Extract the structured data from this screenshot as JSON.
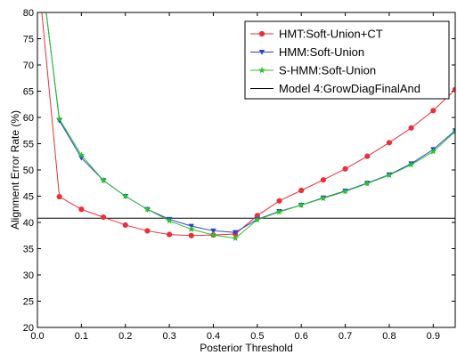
{
  "chart_data": {
    "type": "line",
    "xlabel": "Posterior Threshold",
    "ylabel": "Alignment Error Rate (%)",
    "xlim": [
      0.0,
      0.95
    ],
    "ylim": [
      20,
      80
    ],
    "xticks": [
      "0.0",
      "0.1",
      "0.2",
      "0.3",
      "0.4",
      "0.5",
      "0.6",
      "0.7",
      "0.8",
      "0.9"
    ],
    "xtick_values": [
      0.0,
      0.1,
      0.2,
      0.3,
      0.4,
      0.5,
      0.6,
      0.7,
      0.8,
      0.9
    ],
    "yticks": [
      "20",
      "25",
      "30",
      "35",
      "40",
      "45",
      "50",
      "55",
      "60",
      "65",
      "70",
      "75",
      "80"
    ],
    "ytick_values": [
      20,
      25,
      30,
      35,
      40,
      45,
      50,
      55,
      60,
      65,
      70,
      75,
      80
    ],
    "legend_position": "top-right",
    "grid": false,
    "series": [
      {
        "name": "HMT:Soft-Union+CT",
        "color": "#e8303a",
        "marker": "circle",
        "x": [
          0.01,
          0.05,
          0.1,
          0.15,
          0.2,
          0.25,
          0.3,
          0.35,
          0.4,
          0.45,
          0.5,
          0.55,
          0.6,
          0.65,
          0.7,
          0.75,
          0.8,
          0.85,
          0.9,
          0.95
        ],
        "y": [
          80,
          44.9,
          42.5,
          41.0,
          39.5,
          38.4,
          37.7,
          37.5,
          37.6,
          37.8,
          41.3,
          44.1,
          46.1,
          48.1,
          50.2,
          52.6,
          55.2,
          58.0,
          61.3,
          65.3
        ]
      },
      {
        "name": "HMM:Soft-Union",
        "color": "#2c3fd6",
        "marker": "triangle-down",
        "x": [
          0.02,
          0.05,
          0.1,
          0.15,
          0.2,
          0.25,
          0.3,
          0.35,
          0.4,
          0.45,
          0.5,
          0.55,
          0.6,
          0.65,
          0.7,
          0.75,
          0.8,
          0.85,
          0.9,
          0.95
        ],
        "y": [
          80,
          59.4,
          52.3,
          48.0,
          45.0,
          42.5,
          40.6,
          39.3,
          38.4,
          38.1,
          40.6,
          42.1,
          43.3,
          44.7,
          46.0,
          47.5,
          49.1,
          51.2,
          53.9,
          57.5
        ]
      },
      {
        "name": "S-HMM:Soft-Union",
        "color": "#27c427",
        "marker": "star",
        "x": [
          0.02,
          0.05,
          0.1,
          0.15,
          0.2,
          0.25,
          0.3,
          0.35,
          0.4,
          0.45,
          0.5,
          0.55,
          0.6,
          0.65,
          0.7,
          0.75,
          0.8,
          0.85,
          0.9,
          0.95
        ],
        "y": [
          80,
          59.7,
          52.8,
          48.0,
          45.0,
          42.5,
          40.3,
          38.7,
          37.6,
          37.0,
          40.5,
          42.0,
          43.3,
          44.6,
          45.9,
          47.4,
          49.0,
          51.0,
          53.5,
          57.3
        ]
      },
      {
        "name": "Model 4:GrowDiagFinalAnd",
        "color": "#000000",
        "marker": "none",
        "x": [
          0.0,
          0.95
        ],
        "y": [
          40.8,
          40.8
        ]
      }
    ]
  }
}
